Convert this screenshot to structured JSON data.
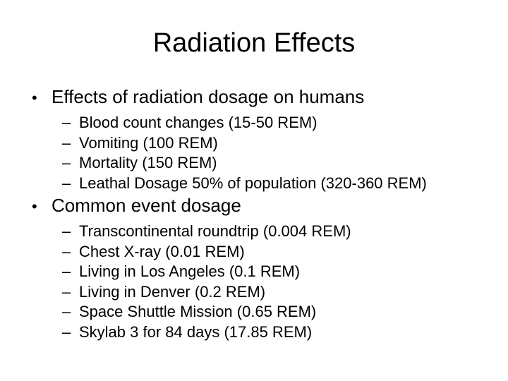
{
  "slide": {
    "title": "Radiation Effects",
    "bullet_glyph": "•",
    "sub_bullet_glyph": "–",
    "colors": {
      "background": "#ffffff",
      "text": "#000000"
    },
    "sections": [
      {
        "heading": "Effects of radiation dosage on humans",
        "items": [
          "Blood count changes (15-50 REM)",
          "Vomiting (100 REM)",
          "Mortality (150 REM)",
          "Leathal Dosage 50% of population (320-360 REM)"
        ]
      },
      {
        "heading": "Common event dosage",
        "items": [
          "Transcontinental roundtrip (0.004 REM)",
          "Chest X-ray (0.01 REM)",
          "Living in Los Angeles (0.1 REM)",
          "Living in Denver (0.2 REM)",
          "Space Shuttle Mission (0.65 REM)",
          "Skylab 3 for 84 days (17.85 REM)"
        ]
      }
    ]
  }
}
